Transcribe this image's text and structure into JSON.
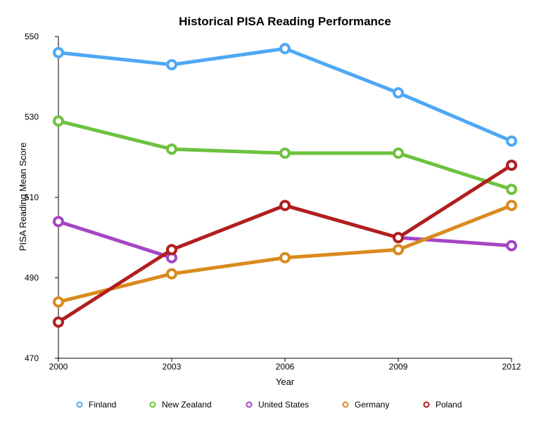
{
  "chart_data": {
    "type": "line",
    "title": "Historical PISA Reading Performance",
    "xlabel": "Year",
    "ylabel": "PISA Reading Mean Score",
    "x": [
      "2000",
      "2003",
      "2006",
      "2009",
      "2012"
    ],
    "ylim": [
      470,
      550
    ],
    "yticks": [
      470,
      490,
      510,
      530,
      550
    ],
    "grid": false,
    "legend_position": "bottom",
    "series": [
      {
        "name": "Finland",
        "color": "#4ea8f5",
        "values": [
          546,
          543,
          547,
          536,
          524
        ]
      },
      {
        "name": "New Zealand",
        "color": "#6cc23e",
        "values": [
          529,
          522,
          521,
          521,
          512
        ]
      },
      {
        "name": "United States",
        "color": "#a545c4",
        "values": [
          504,
          495,
          null,
          500,
          498
        ]
      },
      {
        "name": "Germany",
        "color": "#d98a1e",
        "values": [
          484,
          491,
          495,
          497,
          508
        ]
      },
      {
        "name": "Poland",
        "color": "#b01e1e",
        "values": [
          479,
          497,
          508,
          500,
          518
        ]
      }
    ]
  }
}
